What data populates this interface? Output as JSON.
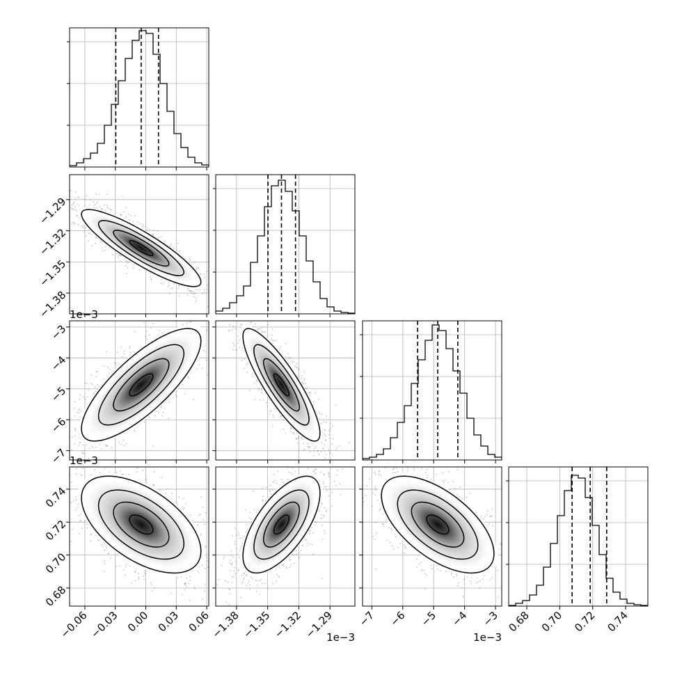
{
  "chart_data": {
    "type": "corner",
    "n_params": 4,
    "params": [
      {
        "range": [
          -0.075,
          0.062
        ],
        "ticks": [
          -0.06,
          -0.03,
          0.0,
          0.03,
          0.06
        ],
        "tick_labels": [
          "−0.06",
          "−0.03",
          "0.00",
          "0.03",
          "0.06"
        ],
        "quantiles": [
          -0.0295,
          -0.0045,
          0.0125
        ]
      },
      {
        "range": [
          -1.4,
          -1.266
        ],
        "ticks": [
          -1.38,
          -1.35,
          -1.32,
          -1.29
        ],
        "tick_labels": [
          "−1.38",
          "−1.35",
          "−1.32",
          "−1.29"
        ],
        "offset_label": "1e−3",
        "quantiles": [
          -1.3497,
          -1.3367,
          -1.3232
        ]
      },
      {
        "range": [
          -7.3,
          -2.8
        ],
        "ticks": [
          -7,
          -6,
          -5,
          -4,
          -3
        ],
        "tick_labels": [
          "−7",
          "−6",
          "−5",
          "−4",
          "−3"
        ],
        "offset_label": "1e−3",
        "quantiles": [
          -5.52,
          -4.87,
          -4.22
        ]
      },
      {
        "range": [
          0.669,
          0.7535
        ],
        "ticks": [
          0.68,
          0.7,
          0.72,
          0.74
        ],
        "tick_labels": [
          "0.68",
          "0.70",
          "0.72",
          "0.74"
        ],
        "quantiles": [
          0.7075,
          0.7185,
          0.7285
        ]
      }
    ],
    "histograms": [
      [
        0.01,
        0.03,
        0.06,
        0.1,
        0.17,
        0.3,
        0.45,
        0.62,
        0.78,
        0.91,
        0.98,
        0.96,
        0.81,
        0.6,
        0.4,
        0.24,
        0.14,
        0.07,
        0.03,
        0.015
      ],
      [
        0.02,
        0.04,
        0.08,
        0.13,
        0.2,
        0.37,
        0.56,
        0.77,
        0.92,
        0.96,
        0.88,
        0.74,
        0.56,
        0.38,
        0.23,
        0.11,
        0.05,
        0.02,
        0.01,
        0.005
      ],
      [
        0.01,
        0.02,
        0.04,
        0.08,
        0.16,
        0.27,
        0.39,
        0.55,
        0.72,
        0.86,
        0.97,
        0.93,
        0.8,
        0.64,
        0.48,
        0.3,
        0.18,
        0.1,
        0.04,
        0.02
      ],
      [
        0.005,
        0.02,
        0.04,
        0.08,
        0.15,
        0.28,
        0.45,
        0.65,
        0.83,
        0.94,
        0.92,
        0.78,
        0.58,
        0.37,
        0.2,
        0.1,
        0.05,
        0.02,
        0.01,
        0.005
      ]
    ],
    "correlations": {
      "1-0": -0.88,
      "2-0": 0.78,
      "2-1": -0.86,
      "3-0": -0.55,
      "3-1": 0.65,
      "3-2": -0.6
    },
    "grid": true
  }
}
